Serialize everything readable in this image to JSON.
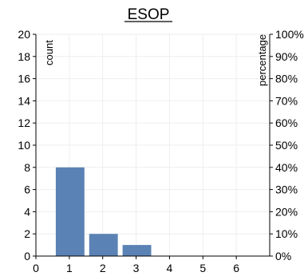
{
  "chart_data": {
    "type": "bar",
    "title": "ESOP",
    "xlabel": "",
    "ylabel": "count",
    "y2label": "percentage",
    "x_ticks": [
      0,
      1,
      2,
      3,
      4,
      5,
      6
    ],
    "xlim": [
      0,
      7
    ],
    "ylim": [
      0,
      20
    ],
    "y_ticks": [
      0,
      2,
      4,
      6,
      8,
      10,
      12,
      14,
      16,
      18,
      20
    ],
    "y2lim": [
      0,
      100
    ],
    "y2_ticks": [
      "0%",
      "10%",
      "20%",
      "30%",
      "40%",
      "50%",
      "60%",
      "70%",
      "80%",
      "90%",
      "100%"
    ],
    "categories": [
      "1",
      "2",
      "3"
    ],
    "values": [
      8,
      2,
      1
    ],
    "bar_color": "#5b82b4",
    "grid": true,
    "grid_color": "#eeeeee",
    "legend": "none"
  }
}
